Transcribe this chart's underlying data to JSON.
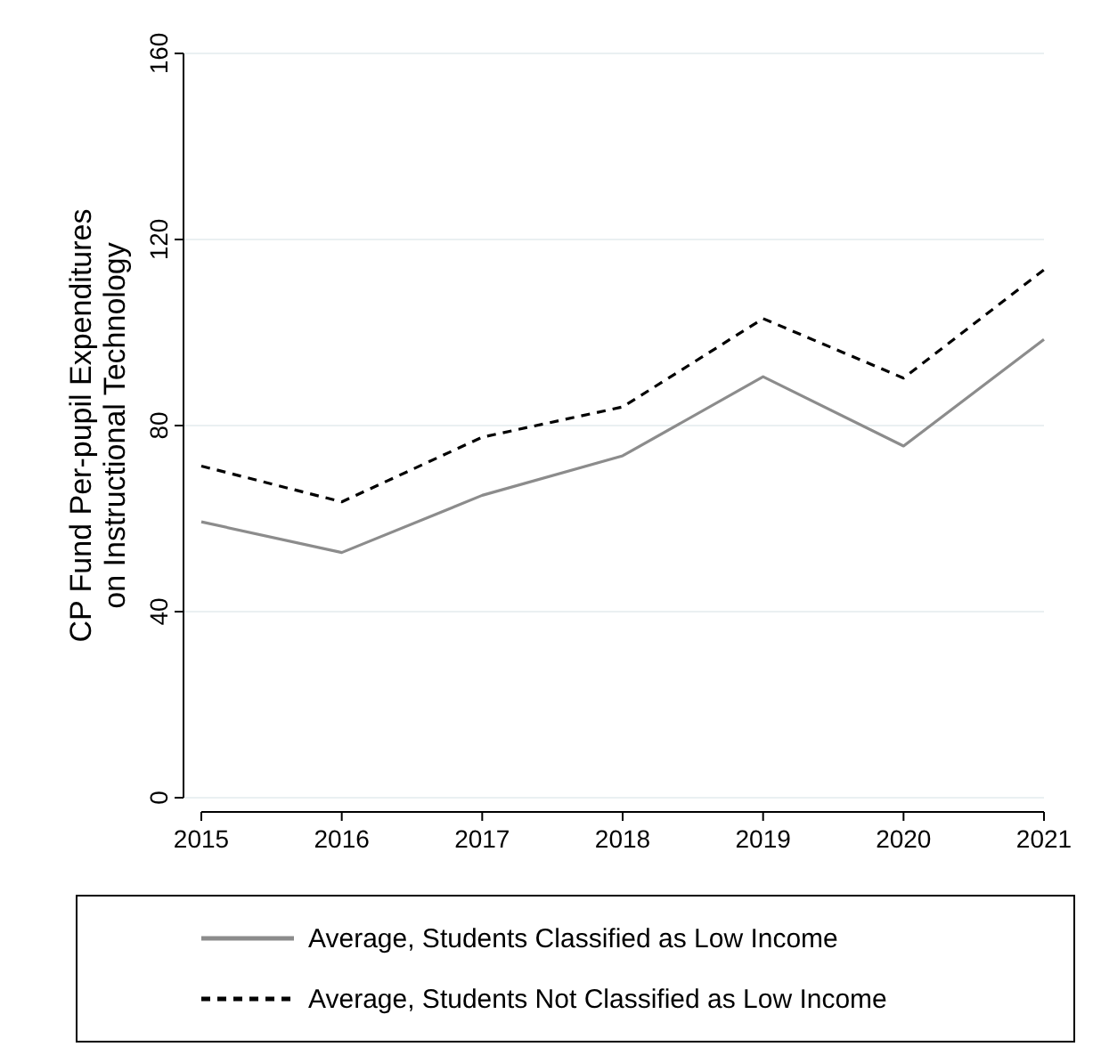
{
  "chart_data": {
    "type": "line",
    "ylabel": "CP Fund Per-pupil Expenditures on Instructional Technology",
    "x": [
      2015,
      2016,
      2017,
      2018,
      2019,
      2020,
      2021
    ],
    "xlim": [
      2015,
      2021
    ],
    "xticks": [
      2015,
      2016,
      2017,
      2018,
      2019,
      2020,
      2021
    ],
    "ylim": [
      0,
      160
    ],
    "yticks": [
      0,
      40,
      80,
      120,
      160
    ],
    "grid": "y",
    "legend": "bottom",
    "series": [
      {
        "name": "Average, Students Classified as Low Income",
        "color": "#8c8c8c",
        "line_style": "solid",
        "values": [
          59.3,
          52.7,
          65,
          73.5,
          90.5,
          75.6,
          98.5
        ]
      },
      {
        "name": "Average, Students Not Classified as Low Income",
        "color": "#000000",
        "line_style": "dashed",
        "values": [
          71.3,
          63.6,
          77.5,
          84,
          103,
          90.2,
          113.5
        ]
      }
    ]
  }
}
